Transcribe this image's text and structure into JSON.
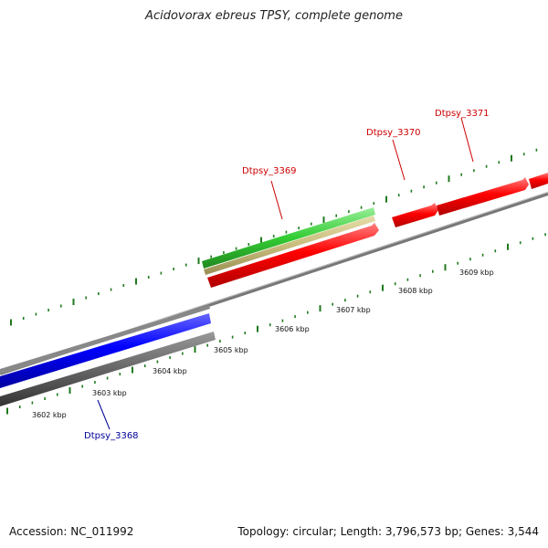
{
  "title": "Acidovorax ebreus TPSY, complete genome",
  "accession": "Accession: NC_011992",
  "summary": "Topology: circular; Length: 3,796,573 bp; Genes: 3,544",
  "colors": {
    "forward_gene": "#ff0000",
    "reverse_gene": "#0000ff",
    "forward_label": "#cc0000",
    "reverse_label": "#000099",
    "green_feature": "#33cc33",
    "tan_feature": "#c8bd7c",
    "gray_feature": "#555555",
    "backbone": "#888888",
    "tick": "#1f7a1f"
  },
  "ticks": [
    "3602 kbp",
    "3603 kbp",
    "3604 kbp",
    "3605 kbp",
    "3606 kbp",
    "3607 kbp",
    "3608 kbp",
    "3609 kbp"
  ],
  "genes": [
    {
      "name": "Dtpsy_3368",
      "strand": "reverse"
    },
    {
      "name": "Dtpsy_3369",
      "strand": "forward"
    },
    {
      "name": "Dtpsy_3370",
      "strand": "forward"
    },
    {
      "name": "Dtpsy_3371",
      "strand": "forward"
    }
  ]
}
